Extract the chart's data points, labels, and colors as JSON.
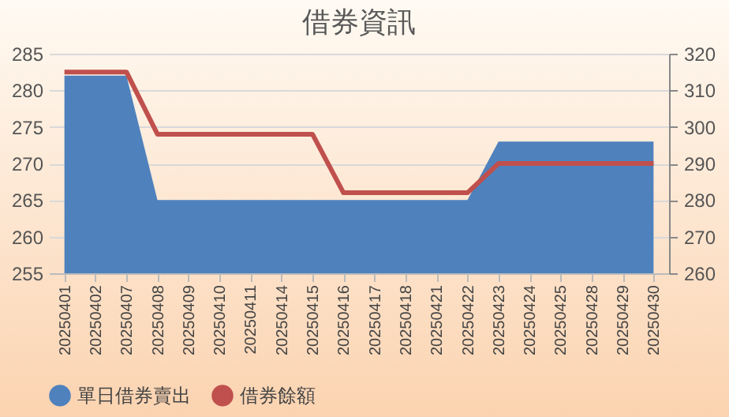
{
  "chart_data": {
    "type": "area",
    "title": "借券資訊",
    "categories": [
      "20250401",
      "20250402",
      "20250407",
      "20250408",
      "20250409",
      "20250410",
      "20250411",
      "20250414",
      "20250415",
      "20250416",
      "20250417",
      "20250418",
      "20250421",
      "20250422",
      "20250423",
      "20250424",
      "20250425",
      "20250428",
      "20250429",
      "20250430"
    ],
    "series": [
      {
        "name": "單日借券賣出",
        "color": "#4f81bd",
        "values": [
          282,
          282,
          282,
          265,
          265,
          265,
          265,
          265,
          265,
          265,
          265,
          265,
          265,
          265,
          273,
          273,
          273,
          273,
          273,
          273
        ]
      },
      {
        "name": "借券餘額",
        "type": "line",
        "axis": "y2",
        "color": "#c0504d",
        "values": [
          315,
          315,
          315,
          298,
          298,
          298,
          298,
          298,
          298,
          282,
          282,
          282,
          282,
          282,
          290,
          290,
          290,
          290,
          290,
          290
        ]
      }
    ],
    "ylim": [
      255,
      285
    ],
    "yticks": [
      255,
      260,
      265,
      270,
      275,
      280,
      285
    ],
    "y2lim": [
      260,
      320
    ],
    "y2ticks": [
      260,
      270,
      280,
      290,
      300,
      310,
      320
    ],
    "grid": "y",
    "legend": "bottom"
  }
}
